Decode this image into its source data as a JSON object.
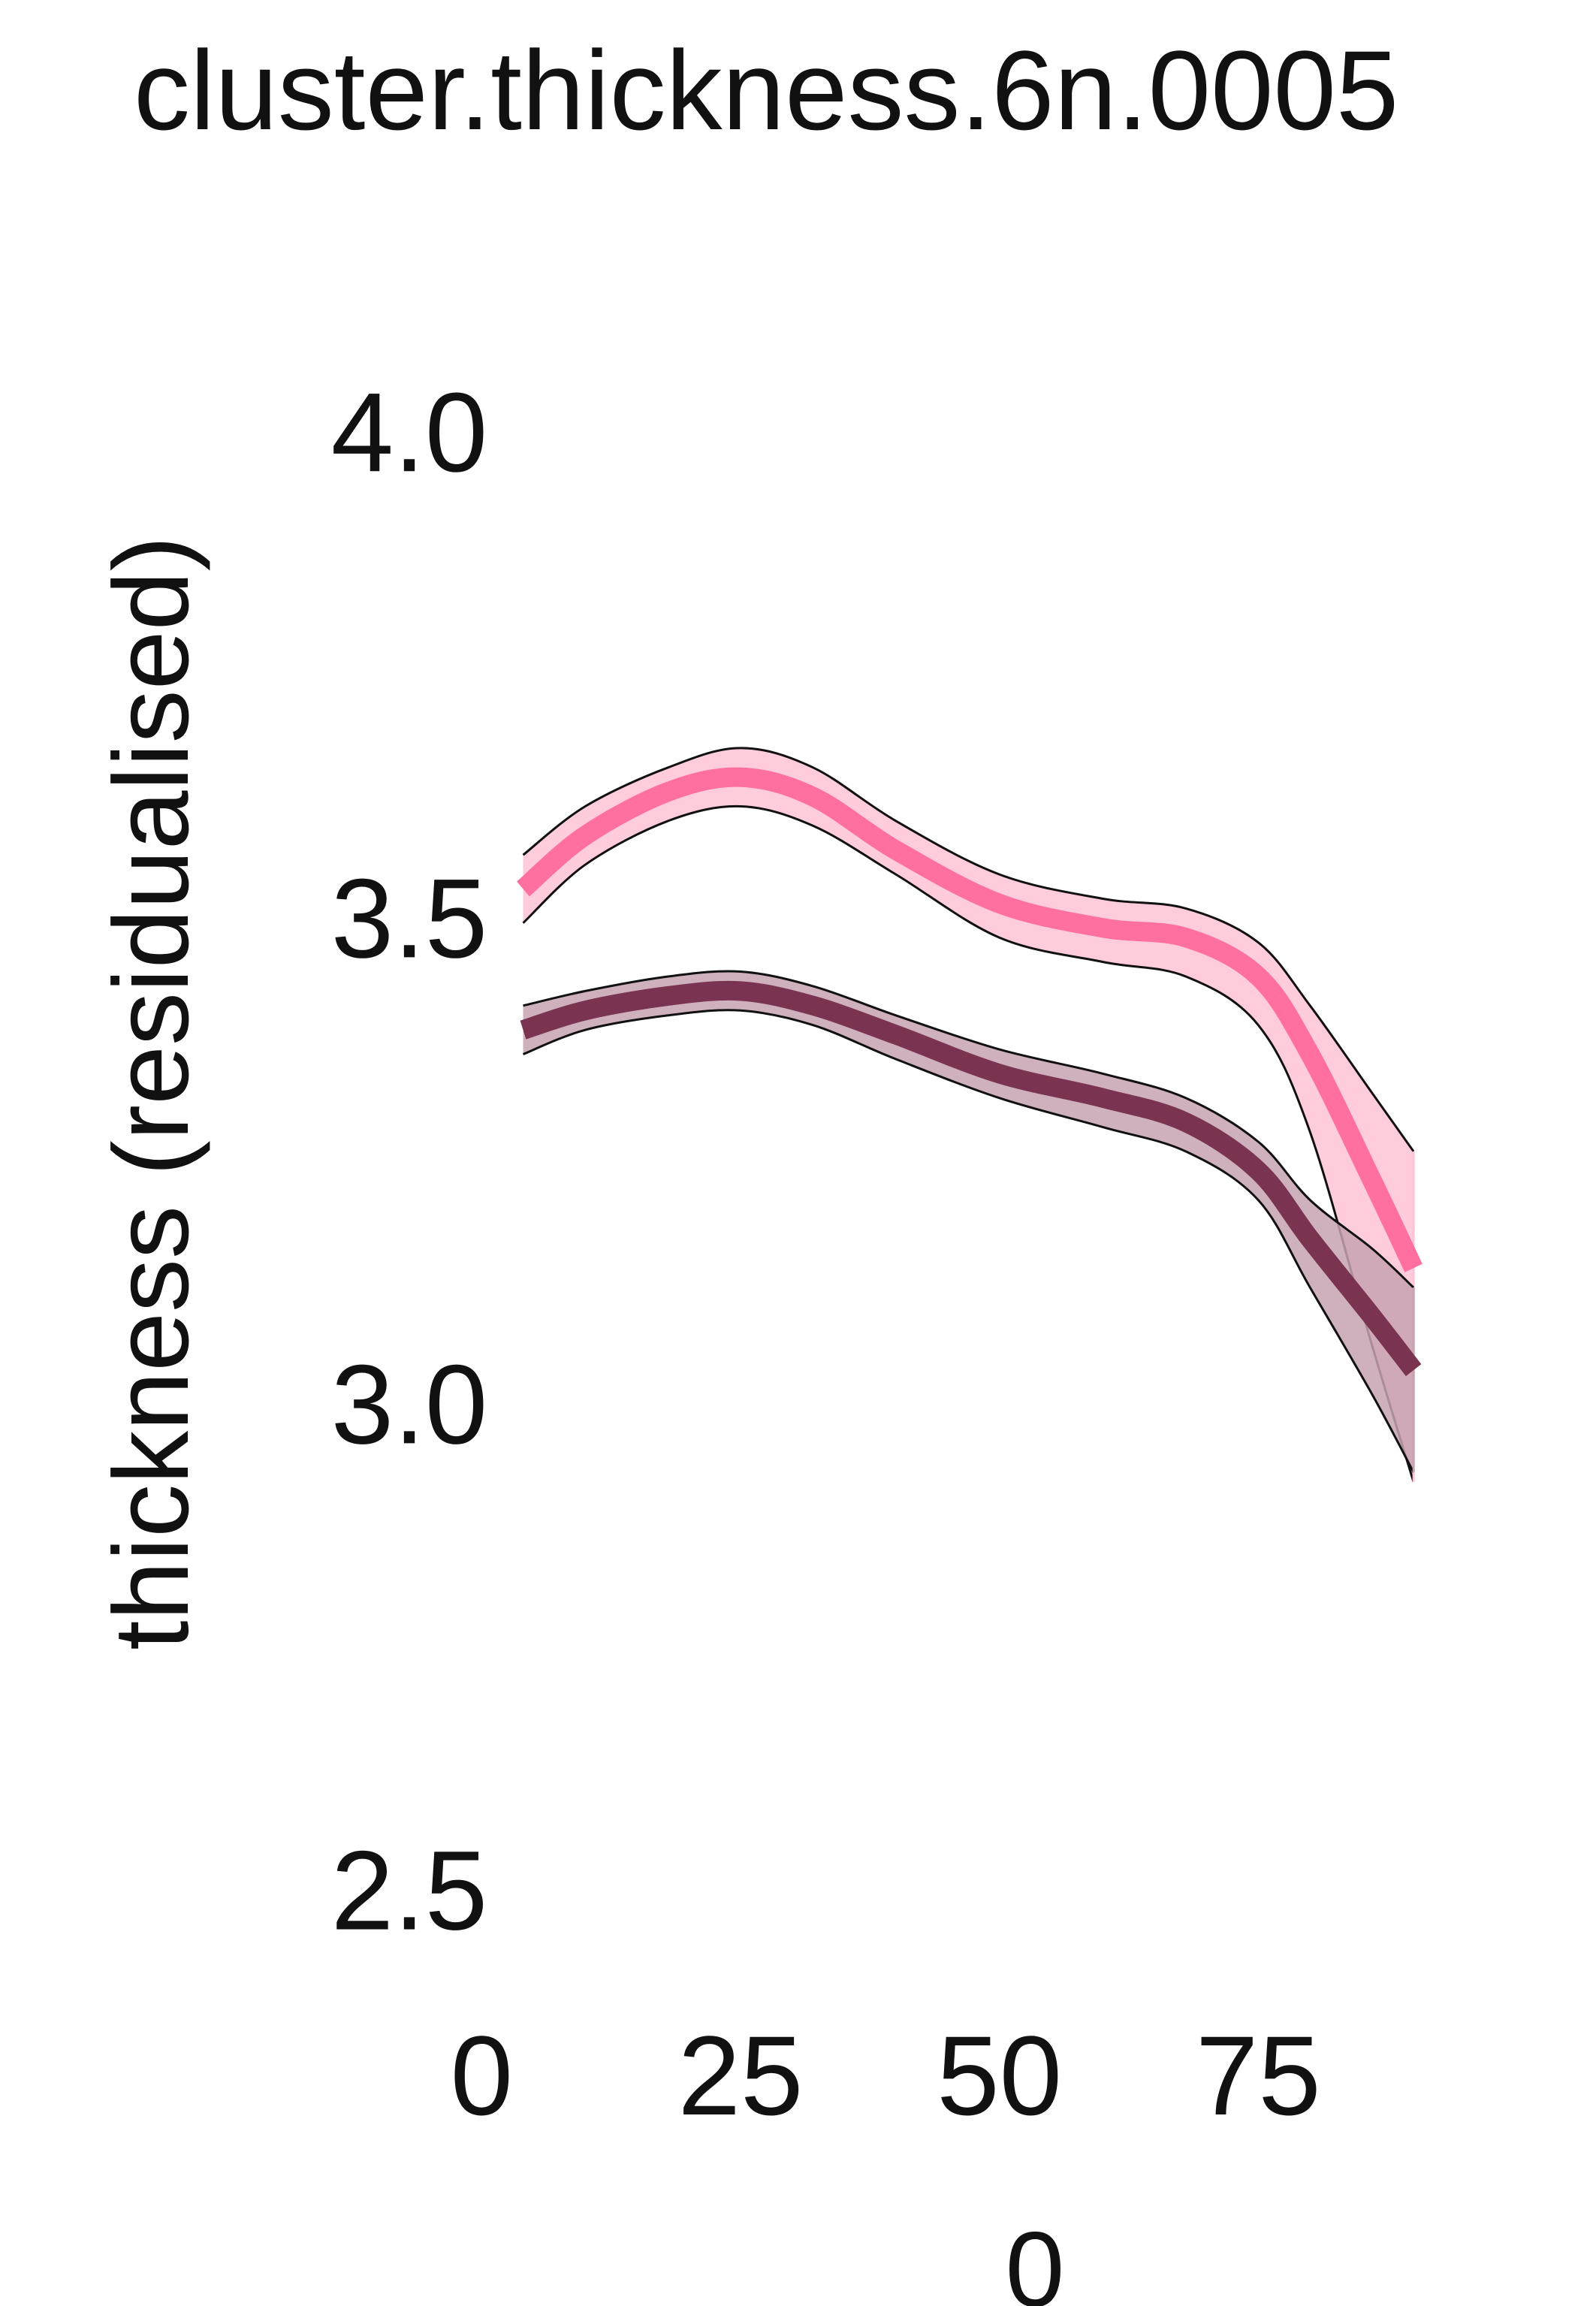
{
  "chart_data": {
    "type": "line",
    "title": "cluster.thickness.6n.0005",
    "xlabel": "0",
    "ylabel": "thickness (residualised)",
    "xlim": [
      -3,
      100
    ],
    "ylim": [
      2.42,
      4.12
    ],
    "x_ticks": [
      0,
      25,
      50,
      75
    ],
    "y_ticks": [
      2.5,
      3.0,
      3.5,
      4.0
    ],
    "grid": false,
    "legend": "none",
    "series": [
      {
        "color": "#ff6fa0",
        "band_color": "#ffc3d6",
        "x": [
          4,
          10,
          18,
          25,
          32,
          40,
          50,
          60,
          68,
          75,
          80,
          86,
          90
        ],
        "y": [
          3.53,
          3.585,
          3.63,
          3.645,
          3.625,
          3.57,
          3.515,
          3.49,
          3.48,
          3.44,
          3.36,
          3.23,
          3.14
        ],
        "lower": [
          3.495,
          3.555,
          3.6,
          3.615,
          3.595,
          3.545,
          3.48,
          3.455,
          3.44,
          3.39,
          3.28,
          3.06,
          2.92
        ],
        "upper": [
          3.565,
          3.615,
          3.655,
          3.675,
          3.655,
          3.6,
          3.545,
          3.52,
          3.51,
          3.475,
          3.41,
          3.32,
          3.26
        ]
      },
      {
        "color": "#7a3350",
        "band_color": "#c7a2b2",
        "x": [
          4,
          10,
          18,
          25,
          32,
          40,
          50,
          60,
          68,
          75,
          80,
          86,
          90
        ],
        "y": [
          3.385,
          3.405,
          3.42,
          3.425,
          3.41,
          3.38,
          3.34,
          3.315,
          3.29,
          3.24,
          3.17,
          3.09,
          3.035
        ],
        "lower": [
          3.36,
          3.385,
          3.4,
          3.405,
          3.39,
          3.355,
          3.315,
          3.285,
          3.26,
          3.21,
          3.12,
          3.01,
          2.93
        ],
        "upper": [
          3.41,
          3.425,
          3.44,
          3.445,
          3.43,
          3.4,
          3.365,
          3.34,
          3.315,
          3.27,
          3.21,
          3.16,
          3.12
        ]
      }
    ]
  }
}
